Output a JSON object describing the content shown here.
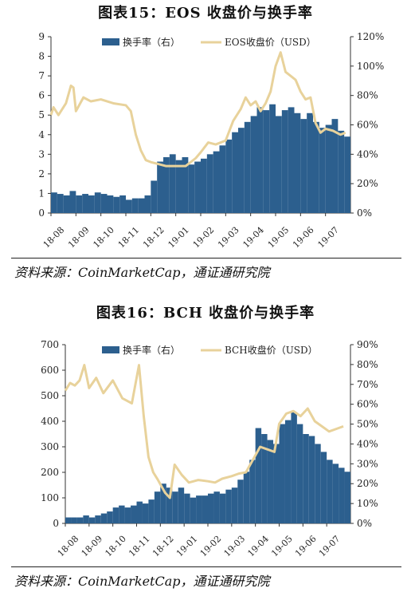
{
  "figures": [
    {
      "title": "图表15：EOS 收盘价与换手率",
      "source": "资料来源：CoinMarketCap，通证通研究院"
    },
    {
      "title": "图表16：BCH 收盘价与换手率",
      "source": "资料来源：CoinMarketCap，通证通研究院"
    }
  ],
  "chart_data": [
    {
      "type": "bar+line",
      "x_tick_labels": [
        "18-08",
        "18-09",
        "18-10",
        "18-11",
        "18-12",
        "19-01",
        "19-02",
        "19-03",
        "19-04",
        "19-05",
        "19-06",
        "19-07"
      ],
      "left_axis": {
        "ticks": [
          "0",
          "1",
          "2",
          "3",
          "4",
          "5",
          "6",
          "7",
          "8",
          "9"
        ],
        "ylim": [
          0,
          9
        ]
      },
      "right_axis": {
        "ticks": [
          "0%",
          "20%",
          "40%",
          "60%",
          "80%",
          "100%",
          "120%"
        ],
        "ylim": [
          0,
          120
        ]
      },
      "legend": {
        "position": "top",
        "items": [
          {
            "label": "换手率（右）",
            "color": "#2c5f8e",
            "kind": "bar"
          },
          {
            "label": "EOS收盘价（USD）",
            "color": "#e8d29b",
            "kind": "line"
          }
        ]
      },
      "series": [
        {
          "name": "换手率（右）",
          "axis": "right",
          "kind": "bar",
          "color": "#2c5f8e",
          "x": [
            0,
            0.25,
            0.5,
            0.75,
            1,
            1.25,
            1.5,
            1.75,
            2,
            2.25,
            2.5,
            2.75,
            3,
            3.25,
            3.5,
            3.75,
            4,
            4.25,
            4.5,
            4.75,
            5,
            5.25,
            5.5,
            5.75,
            6,
            6.25,
            6.5,
            6.75,
            7,
            7.25,
            7.5,
            7.75,
            8,
            8.25,
            8.5,
            8.75,
            9,
            9.25,
            9.5,
            9.75,
            10,
            10.25,
            10.5,
            10.75,
            11,
            11.25,
            11.5,
            11.75
          ],
          "values": [
            14,
            13,
            12,
            15,
            12,
            13,
            12,
            14,
            13,
            12,
            11,
            12,
            9,
            10,
            10,
            12,
            22,
            35,
            38,
            40,
            36,
            38,
            33,
            35,
            37,
            40,
            42,
            46,
            50,
            55,
            58,
            62,
            66,
            72,
            70,
            74,
            66,
            70,
            72,
            68,
            64,
            68,
            62,
            58,
            60,
            64,
            56,
            52
          ]
        },
        {
          "name": "EOS收盘价（USD）",
          "axis": "left",
          "kind": "line",
          "color": "#e8d29b",
          "x": [
            0,
            0.1,
            0.3,
            0.6,
            0.8,
            0.9,
            1.0,
            1.3,
            1.6,
            2.0,
            2.5,
            3.0,
            3.2,
            3.4,
            3.6,
            3.8,
            4.0,
            4.3,
            4.6,
            5.0,
            5.4,
            5.8,
            6.0,
            6.3,
            6.6,
            7.0,
            7.3,
            7.6,
            7.8,
            8.0,
            8.2,
            8.4,
            8.6,
            8.8,
            9.0,
            9.2,
            9.4,
            9.6,
            9.8,
            10.0,
            10.2,
            10.4,
            10.6,
            10.8,
            11.0,
            11.3,
            11.6,
            11.8
          ],
          "values": [
            5.0,
            5.4,
            5.0,
            5.6,
            6.5,
            6.4,
            5.2,
            5.9,
            5.7,
            5.8,
            5.6,
            5.5,
            5.2,
            4.0,
            3.2,
            2.7,
            2.6,
            2.5,
            2.4,
            2.4,
            2.4,
            2.8,
            3.1,
            3.6,
            3.5,
            3.7,
            4.7,
            5.3,
            5.9,
            5.5,
            5.7,
            5.2,
            5.6,
            6.2,
            7.5,
            8.2,
            7.2,
            7.0,
            6.8,
            6.2,
            5.8,
            5.9,
            4.6,
            4.1,
            4.3,
            4.2,
            4.0,
            4.1
          ]
        }
      ]
    },
    {
      "type": "bar+line",
      "x_tick_labels": [
        "18-08",
        "18-09",
        "18-10",
        "18-11",
        "18-12",
        "19-01",
        "19-02",
        "19-03",
        "19-04",
        "19-05",
        "19-06",
        "19-07"
      ],
      "left_axis": {
        "ticks": [
          "0",
          "100",
          "200",
          "300",
          "400",
          "500",
          "600",
          "700"
        ],
        "ylim": [
          0,
          700
        ]
      },
      "right_axis": {
        "ticks": [
          "0%",
          "10%",
          "20%",
          "30%",
          "40%",
          "50%",
          "60%",
          "70%",
          "80%",
          "90%"
        ],
        "ylim": [
          0,
          90
        ]
      },
      "legend": {
        "position": "top",
        "items": [
          {
            "label": "换手率（右）",
            "color": "#2c5f8e",
            "kind": "bar"
          },
          {
            "label": "BCH收盘价（USD）",
            "color": "#e8d29b",
            "kind": "line"
          }
        ]
      },
      "series": [
        {
          "name": "换手率（右）",
          "axis": "right",
          "kind": "bar",
          "color": "#2c5f8e",
          "x": [
            0,
            0.25,
            0.5,
            0.75,
            1,
            1.25,
            1.5,
            1.75,
            2,
            2.25,
            2.5,
            2.75,
            3,
            3.25,
            3.5,
            3.75,
            4,
            4.25,
            4.5,
            4.75,
            5,
            5.25,
            5.5,
            5.75,
            6,
            6.25,
            6.5,
            6.75,
            7,
            7.25,
            7.5,
            7.75,
            8,
            8.25,
            8.5,
            8.75,
            9,
            9.25,
            9.5,
            9.75,
            10,
            10.25,
            10.5,
            10.75,
            11,
            11.25,
            11.5,
            11.75
          ],
          "values": [
            3,
            3,
            3,
            4,
            3,
            4,
            5,
            6,
            8,
            9,
            8,
            9,
            11,
            10,
            12,
            16,
            20,
            18,
            16,
            18,
            15,
            13,
            14,
            14,
            15,
            16,
            15,
            17,
            18,
            22,
            26,
            32,
            48,
            45,
            42,
            40,
            50,
            52,
            56,
            50,
            45,
            44,
            40,
            36,
            32,
            30,
            28,
            26
          ]
        },
        {
          "name": "BCH收盘价（USD）",
          "axis": "left",
          "kind": "line",
          "color": "#e8d29b",
          "x": [
            0,
            0.2,
            0.4,
            0.6,
            0.8,
            1.0,
            1.3,
            1.6,
            2.0,
            2.4,
            2.8,
            3.1,
            3.3,
            3.5,
            3.7,
            3.9,
            4.2,
            4.4,
            4.6,
            4.9,
            5.2,
            5.6,
            6.0,
            6.3,
            6.6,
            7.0,
            7.3,
            7.6,
            7.9,
            8.2,
            8.5,
            8.8,
            9.0,
            9.3,
            9.6,
            9.9,
            10.2,
            10.5,
            10.8,
            11.1,
            11.4,
            11.7
          ],
          "values": [
            520,
            550,
            540,
            560,
            620,
            530,
            570,
            510,
            560,
            490,
            470,
            620,
            420,
            260,
            200,
            170,
            120,
            100,
            230,
            190,
            160,
            170,
            165,
            160,
            175,
            185,
            195,
            200,
            250,
            300,
            290,
            280,
            390,
            430,
            440,
            420,
            450,
            400,
            380,
            360,
            370,
            380
          ]
        }
      ]
    }
  ]
}
